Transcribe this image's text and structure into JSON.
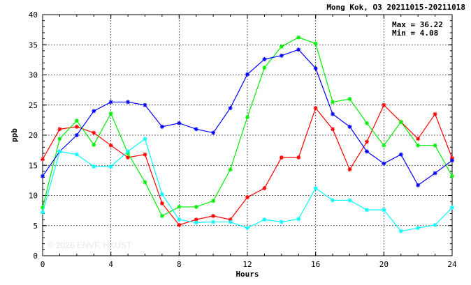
{
  "chart_data": {
    "type": "line",
    "title": "Mong Kok, O3 20211015-20211018",
    "xlabel": "Hours",
    "ylabel": "ppb",
    "xlim": [
      0,
      24
    ],
    "ylim": [
      0,
      40
    ],
    "xticks": [
      "0",
      "4",
      "8",
      "12",
      "16",
      "20",
      "24"
    ],
    "yticks": [
      "0",
      "5",
      "10",
      "15",
      "20",
      "25",
      "30",
      "35",
      "40"
    ],
    "grid": true,
    "stats": {
      "max_label": "Max = 36.22",
      "min_label": "Min =  4.08"
    },
    "watermark": "© 2026 ENVF, HKUST",
    "x": [
      0,
      1,
      2,
      3,
      4,
      5,
      6,
      7,
      8,
      9,
      10,
      11,
      12,
      13,
      14,
      15,
      16,
      17,
      18,
      19,
      20,
      21,
      22,
      23,
      24
    ],
    "series": [
      {
        "color": "#ff0000",
        "values": [
          16.0,
          21.0,
          21.4,
          20.4,
          18.3,
          16.3,
          16.8,
          8.7,
          5.1,
          6.0,
          6.6,
          6.0,
          9.7,
          11.2,
          16.3,
          16.3,
          24.5,
          21.0,
          14.3,
          18.9,
          25.0,
          22.2,
          19.4,
          23.5,
          16.2
        ]
      },
      {
        "color": "#00ee00",
        "values": [
          8.0,
          19.4,
          22.4,
          18.4,
          23.6,
          17.0,
          12.2,
          6.6,
          8.1,
          8.1,
          9.1,
          14.3,
          23.0,
          31.2,
          34.7,
          36.22,
          35.2,
          25.5,
          26.0,
          22.0,
          18.3,
          22.2,
          18.3,
          18.3,
          13.2
        ]
      },
      {
        "color": "#0000ff",
        "values": [
          13.2,
          17.3,
          20.0,
          24.0,
          25.5,
          25.5,
          25.0,
          21.4,
          22.0,
          21.0,
          20.4,
          24.5,
          30.1,
          32.6,
          33.2,
          34.2,
          31.1,
          23.5,
          21.4,
          17.3,
          15.3,
          16.8,
          11.7,
          13.7,
          15.8
        ]
      },
      {
        "color": "#00ffff",
        "values": [
          7.2,
          17.3,
          16.8,
          14.8,
          14.8,
          17.3,
          19.4,
          10.2,
          6.0,
          5.5,
          5.6,
          5.6,
          4.6,
          6.0,
          5.6,
          6.1,
          11.2,
          9.2,
          9.2,
          7.6,
          7.6,
          4.08,
          4.6,
          5.1,
          8.0
        ]
      }
    ]
  }
}
